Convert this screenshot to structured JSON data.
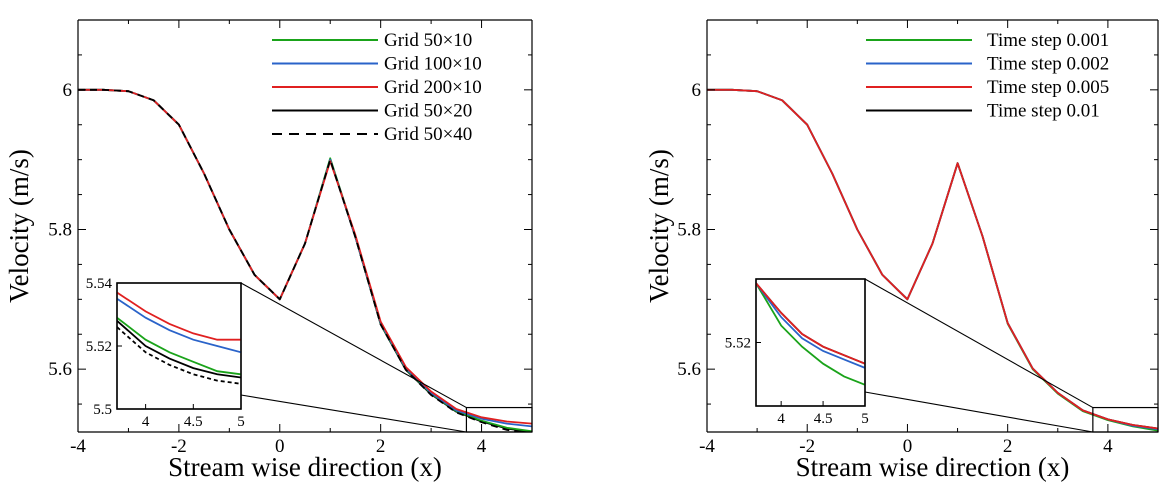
{
  "chart_data": [
    {
      "type": "line",
      "title": "",
      "xlabel": "Stream wise direction (x)",
      "ylabel": "Velocity (m/s)",
      "xlim": [
        -4,
        5
      ],
      "ylim": [
        5.51,
        6.1
      ],
      "xticks": [
        -4,
        -2,
        0,
        2,
        4
      ],
      "yticks": [
        5.6,
        5.8,
        6
      ],
      "xtick_labels": [
        "-4",
        "-2",
        "0",
        "2",
        "4"
      ],
      "ytick_labels": [
        "5.6",
        "5.8",
        "6"
      ],
      "legend_position": "top-right",
      "grid": false,
      "x": [
        -4,
        -3.5,
        -3,
        -2.5,
        -2,
        -1.5,
        -1,
        -0.5,
        0,
        0.5,
        1,
        1.5,
        2,
        2.5,
        3,
        3.5,
        4,
        4.5,
        5
      ],
      "series": [
        {
          "name": "Grid 50×10",
          "color": "#1aa31a",
          "dash": "solid",
          "values": [
            6.0,
            6.0,
            5.998,
            5.985,
            5.95,
            5.88,
            5.8,
            5.735,
            5.7,
            5.78,
            5.902,
            5.79,
            5.665,
            5.6,
            5.565,
            5.54,
            5.526,
            5.516,
            5.511
          ]
        },
        {
          "name": "Grid 100×10",
          "color": "#2a63c9",
          "dash": "solid",
          "values": [
            6.0,
            6.0,
            5.998,
            5.985,
            5.95,
            5.88,
            5.8,
            5.735,
            5.7,
            5.78,
            5.9,
            5.79,
            5.666,
            5.601,
            5.566,
            5.541,
            5.529,
            5.522,
            5.518
          ]
        },
        {
          "name": "Grid 200×10",
          "color": "#e02020",
          "dash": "solid",
          "values": [
            6.0,
            6.0,
            5.998,
            5.985,
            5.95,
            5.88,
            5.8,
            5.735,
            5.7,
            5.78,
            5.898,
            5.792,
            5.668,
            5.603,
            5.568,
            5.543,
            5.531,
            5.525,
            5.522
          ]
        },
        {
          "name": "Grid 50×20",
          "color": "#000000",
          "dash": "solid",
          "values": [
            6.0,
            6.0,
            5.998,
            5.985,
            5.95,
            5.88,
            5.8,
            5.735,
            5.7,
            5.78,
            5.9,
            5.789,
            5.664,
            5.599,
            5.564,
            5.539,
            5.525,
            5.515,
            5.51
          ]
        },
        {
          "name": "Grid 50×40",
          "color": "#000000",
          "dash": "dashed",
          "values": [
            6.0,
            6.0,
            5.998,
            5.985,
            5.95,
            5.88,
            5.8,
            5.735,
            5.7,
            5.78,
            5.9,
            5.789,
            5.664,
            5.599,
            5.563,
            5.538,
            5.524,
            5.513,
            5.508
          ]
        }
      ],
      "inset": {
        "xlim": [
          3.7,
          5
        ],
        "ylim": [
          5.5,
          5.54
        ],
        "xticks": [
          4,
          4.5,
          5
        ],
        "yticks": [
          5.5,
          5.52,
          5.54
        ],
        "xtick_labels": [
          "4",
          "4.5",
          "5"
        ],
        "ytick_labels": [
          "5.5",
          "5.52",
          "5.54"
        ],
        "x": [
          3.7,
          4.0,
          4.25,
          4.5,
          4.75,
          5.0
        ],
        "series_values": [
          [
            5.529,
            5.522,
            5.518,
            5.515,
            5.512,
            5.511
          ],
          [
            5.535,
            5.529,
            5.525,
            5.522,
            5.52,
            5.518
          ],
          [
            5.537,
            5.531,
            5.527,
            5.524,
            5.522,
            5.522
          ],
          [
            5.528,
            5.52,
            5.516,
            5.513,
            5.511,
            5.51
          ],
          [
            5.526,
            5.518,
            5.514,
            5.511,
            5.509,
            5.508
          ]
        ]
      }
    },
    {
      "type": "line",
      "title": "",
      "xlabel": "Stream wise direction (x)",
      "ylabel": "Velocity (m/s)",
      "xlim": [
        -4,
        5
      ],
      "ylim": [
        5.51,
        6.1
      ],
      "xticks": [
        -4,
        -2,
        0,
        2,
        4
      ],
      "yticks": [
        5.6,
        5.8,
        6
      ],
      "xtick_labels": [
        "-4",
        "-2",
        "0",
        "2",
        "4"
      ],
      "ytick_labels": [
        "5.6",
        "5.8",
        "6"
      ],
      "legend_position": "top-right",
      "grid": false,
      "x": [
        -4,
        -3.5,
        -3,
        -2.5,
        -2,
        -1.5,
        -1,
        -0.5,
        0,
        0.5,
        1,
        1.5,
        2,
        2.5,
        3,
        3.5,
        4,
        4.5,
        5
      ],
      "series": [
        {
          "name": "Time step 0.001",
          "color": "#1aa31a",
          "dash": "solid",
          "values": [
            6.0,
            6.0,
            5.998,
            5.985,
            5.95,
            5.88,
            5.8,
            5.735,
            5.7,
            5.78,
            5.895,
            5.79,
            5.665,
            5.6,
            5.565,
            5.54,
            5.527,
            5.518,
            5.512
          ]
        },
        {
          "name": "Time step 0.002",
          "color": "#2a63c9",
          "dash": "solid",
          "values": [
            6.0,
            6.0,
            5.998,
            5.985,
            5.95,
            5.88,
            5.8,
            5.735,
            5.7,
            5.78,
            5.895,
            5.79,
            5.666,
            5.601,
            5.566,
            5.541,
            5.528,
            5.519,
            5.514
          ]
        },
        {
          "name": "Time step 0.005",
          "color": "#e02020",
          "dash": "solid",
          "values": [
            6.0,
            6.0,
            5.998,
            5.985,
            5.95,
            5.88,
            5.8,
            5.735,
            5.7,
            5.78,
            5.895,
            5.79,
            5.666,
            5.601,
            5.566,
            5.541,
            5.528,
            5.52,
            5.515
          ]
        },
        {
          "name": "Time step 0.01",
          "color": "#000000",
          "dash": "solid",
          "values": [
            6.0,
            6.0,
            5.998,
            5.985,
            5.95,
            5.88,
            5.8,
            5.735,
            5.7,
            5.78,
            5.895,
            5.79,
            5.666,
            5.601,
            5.566,
            5.541,
            5.528,
            5.52,
            5.515
          ]
        }
      ],
      "inset": {
        "xlim": [
          3.7,
          5
        ],
        "ylim": [
          5.505,
          5.535
        ],
        "xticks": [
          4,
          4.5,
          5
        ],
        "yticks": [
          5.52
        ],
        "xtick_labels": [
          "4",
          "4.5",
          "5"
        ],
        "ytick_labels": [
          "5.52"
        ],
        "x": [
          3.7,
          4.0,
          4.25,
          4.5,
          4.75,
          5.0
        ],
        "series_values": [
          [
            5.534,
            5.524,
            5.519,
            5.515,
            5.512,
            5.51
          ],
          [
            5.534,
            5.526,
            5.521,
            5.518,
            5.516,
            5.514
          ],
          [
            5.534,
            5.527,
            5.522,
            5.519,
            5.517,
            5.515
          ],
          [
            5.534,
            5.527,
            5.522,
            5.519,
            5.517,
            5.515
          ]
        ]
      }
    }
  ]
}
